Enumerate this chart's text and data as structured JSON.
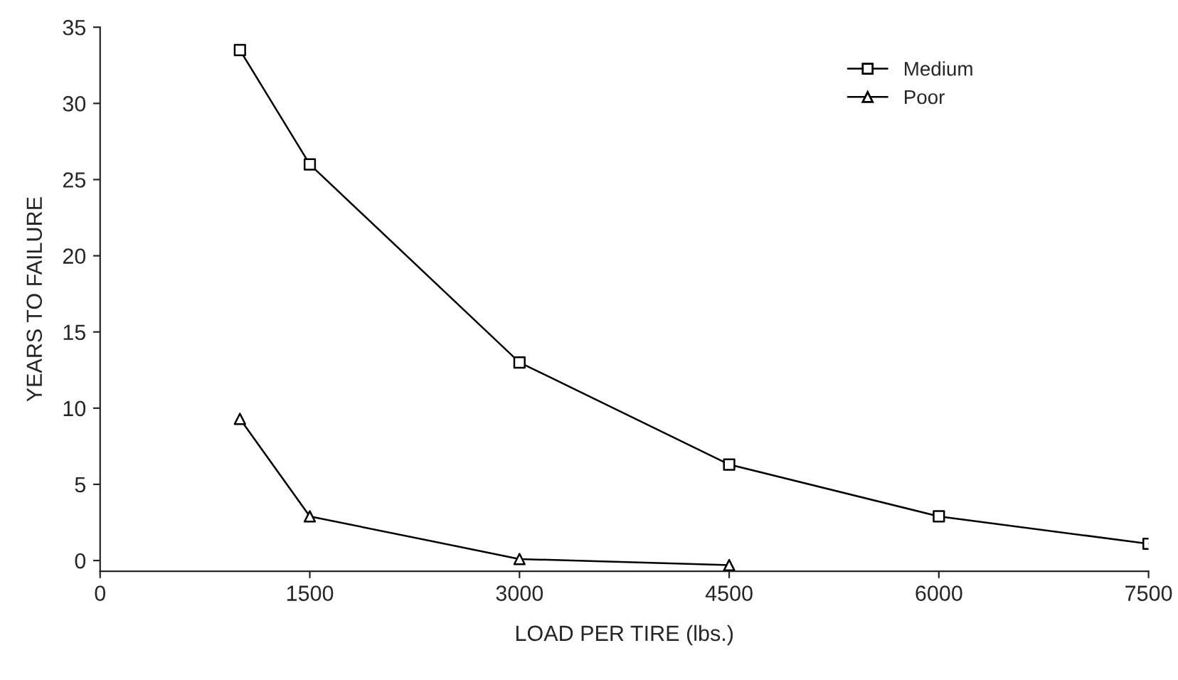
{
  "chart_data": {
    "type": "line",
    "xlabel": "LOAD PER TIRE (lbs.)",
    "ylabel": "YEARS TO FAILURE",
    "series": [
      {
        "name": "Medium",
        "color": "#000000",
        "marker": "square",
        "x": [
          1000,
          1500,
          3000,
          4500,
          6000,
          7500
        ],
        "values": [
          33.5,
          26,
          13,
          6.3,
          2.9,
          1.1
        ]
      },
      {
        "name": "Poor",
        "color": "#000000",
        "marker": "triangle",
        "x": [
          1000,
          1500,
          3000,
          4500
        ],
        "values": [
          9.3,
          2.9,
          0.1,
          -0.3
        ]
      }
    ],
    "xlim": [
      0,
      7500
    ],
    "ylim": [
      -0.7,
      35
    ],
    "xticks": [
      0,
      1500,
      3000,
      4500,
      6000,
      7500
    ],
    "yticks": [
      0,
      5,
      10,
      15,
      20,
      25,
      30,
      35
    ],
    "grid": false,
    "legend": "top right",
    "line_style": "solid"
  }
}
